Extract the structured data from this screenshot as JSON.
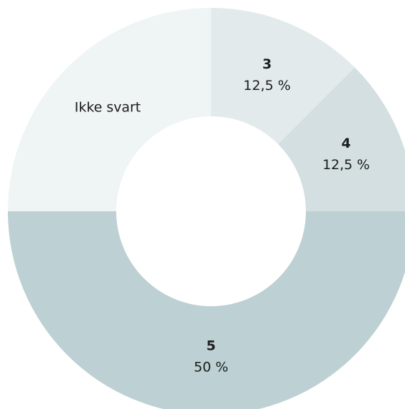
{
  "chart_data": {
    "type": "donut",
    "categories": [
      "3",
      "4",
      "5",
      "Ikke svart"
    ],
    "values": [
      12.5,
      12.5,
      50,
      25
    ],
    "value_labels": [
      "12,5 %",
      "12,5 %",
      "50 %",
      null
    ],
    "colors": [
      "#e3eaeb",
      "#d3dfe0",
      "#bdd0d3",
      "#eff4f5"
    ]
  }
}
